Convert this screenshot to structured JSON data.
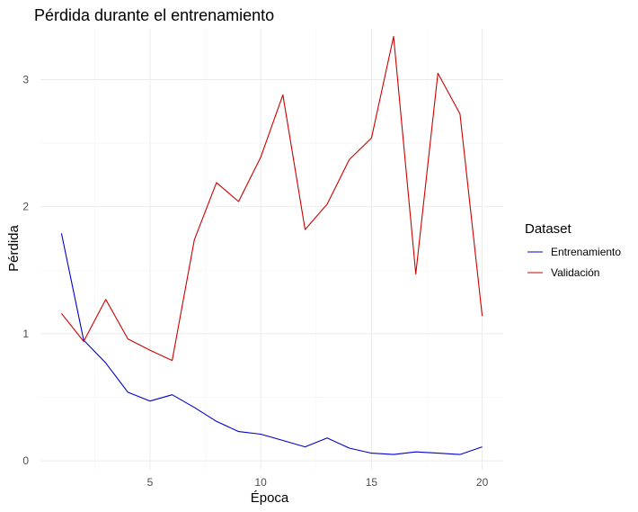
{
  "chart_data": {
    "type": "line",
    "title": "Pérdida durante el entrenamiento",
    "xlabel": "Época",
    "ylabel": "Pérdida",
    "x": [
      1,
      2,
      3,
      4,
      5,
      6,
      7,
      8,
      9,
      10,
      11,
      12,
      13,
      14,
      15,
      16,
      17,
      18,
      19,
      20
    ],
    "xlim": [
      0.05,
      20.95
    ],
    "ylim": [
      -0.07,
      3.4
    ],
    "x_ticks": [
      5,
      10,
      15,
      20
    ],
    "y_ticks": [
      0,
      1,
      2,
      3
    ],
    "grid": true,
    "legend": {
      "title": "Dataset",
      "position": "right"
    },
    "series": [
      {
        "name": "Entrenamiento",
        "color": "#0000cd",
        "values": [
          1.79,
          0.95,
          0.77,
          0.54,
          0.47,
          0.52,
          0.42,
          0.31,
          0.23,
          0.21,
          0.16,
          0.11,
          0.18,
          0.1,
          0.06,
          0.05,
          0.07,
          0.06,
          0.05,
          0.11
        ]
      },
      {
        "name": "Validación",
        "color": "#cd0000",
        "values": [
          1.16,
          0.94,
          1.27,
          0.96,
          0.87,
          0.79,
          1.74,
          2.19,
          2.04,
          2.39,
          2.88,
          1.82,
          2.02,
          2.37,
          2.54,
          3.34,
          1.47,
          3.05,
          2.73,
          1.14
        ]
      }
    ]
  }
}
